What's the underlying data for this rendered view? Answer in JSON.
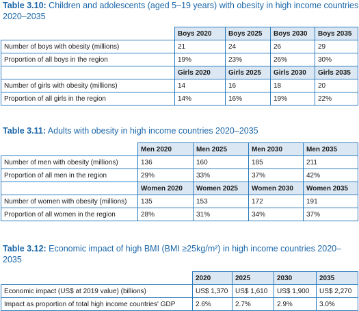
{
  "tables": [
    {
      "num": "Table 3.10:",
      "title": "Children and adolescents (aged 5–19 years) with obesity in high income countries 2020–2035",
      "blocks": [
        {
          "headers": [
            "Boys 2020",
            "Boys 2025",
            "Boys 2030",
            "Boys 2035"
          ],
          "rows": [
            {
              "label": "Number of boys with obesity (millions)",
              "values": [
                "21",
                "24",
                "26",
                "29"
              ]
            },
            {
              "label": "Proportion of all boys in the region",
              "values": [
                "19%",
                "23%",
                "26%",
                "30%"
              ]
            }
          ]
        },
        {
          "headers": [
            "Girls 2020",
            "Girls 2025",
            "Girls 2030",
            "Girls 2035"
          ],
          "rows": [
            {
              "label": "Number of girls with obesity (millions)",
              "values": [
                "14",
                "16",
                "18",
                "20"
              ]
            },
            {
              "label": "Proportion of all girls in the region",
              "values": [
                "14%",
                "16%",
                "19%",
                "22%"
              ]
            }
          ]
        }
      ]
    },
    {
      "num": "Table 3.11:",
      "title": "Adults with obesity in high income countries 2020–2035",
      "blocks": [
        {
          "headers": [
            "Men 2020",
            "Men 2025",
            "Men 2030",
            "Men 2035"
          ],
          "rows": [
            {
              "label": "Number of men with obesity (millions)",
              "values": [
                "136",
                "160",
                "185",
                "211"
              ]
            },
            {
              "label": "Proportion of all men in the region",
              "values": [
                "29%",
                "33%",
                "37%",
                "42%"
              ]
            }
          ]
        },
        {
          "headers": [
            "Women 2020",
            "Women 2025",
            "Women 2030",
            "Women 2035"
          ],
          "rows": [
            {
              "label": "Number of women with obesity (millions)",
              "values": [
                "135",
                "153",
                "172",
                "191"
              ]
            },
            {
              "label": "Proportion of all women in the region",
              "values": [
                "28%",
                "31%",
                "34%",
                "37%"
              ]
            }
          ]
        }
      ]
    },
    {
      "num": "Table 3.12:",
      "title": "Economic impact of high BMI (BMI ≥25kg/m²) in high income countries 2020–2035",
      "blocks": [
        {
          "headers": [
            "2020",
            "2025",
            "2030",
            "2035"
          ],
          "rows": [
            {
              "label": "Economic impact (US$ at 2019 value) (billions)",
              "values": [
                "US$ 1,370",
                "US$ 1,610",
                "US$ 1,900",
                "US$ 2,270"
              ]
            },
            {
              "label": "Impact as proportion of total high income countries' GDP",
              "values": [
                "2.6%",
                "2.7%",
                "2.9%",
                "3.0%"
              ]
            }
          ]
        }
      ]
    }
  ]
}
